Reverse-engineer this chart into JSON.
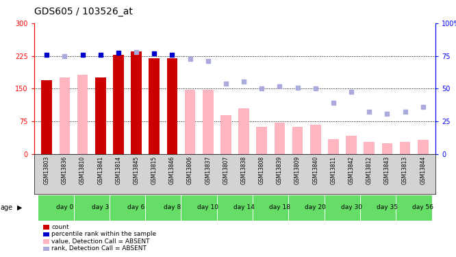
{
  "title": "GDS605 / 103526_at",
  "samples": [
    "GSM13803",
    "GSM13836",
    "GSM13810",
    "GSM13841",
    "GSM13814",
    "GSM13845",
    "GSM13815",
    "GSM13846",
    "GSM13806",
    "GSM13837",
    "GSM13807",
    "GSM13838",
    "GSM13808",
    "GSM13839",
    "GSM13809",
    "GSM13840",
    "GSM13811",
    "GSM13842",
    "GSM13812",
    "GSM13843",
    "GSM13813",
    "GSM13844"
  ],
  "age_groups": [
    {
      "label": "day 0",
      "start": 0,
      "end": 2
    },
    {
      "label": "day 3",
      "start": 2,
      "end": 4
    },
    {
      "label": "day 6",
      "start": 4,
      "end": 6
    },
    {
      "label": "day 8",
      "start": 6,
      "end": 8
    },
    {
      "label": "day 10",
      "start": 8,
      "end": 10
    },
    {
      "label": "day 14",
      "start": 10,
      "end": 12
    },
    {
      "label": "day 18",
      "start": 12,
      "end": 14
    },
    {
      "label": "day 20",
      "start": 14,
      "end": 16
    },
    {
      "label": "day 30",
      "start": 16,
      "end": 18
    },
    {
      "label": "day 35",
      "start": 18,
      "end": 20
    },
    {
      "label": "day 56",
      "start": 20,
      "end": 22
    }
  ],
  "count_values": [
    170,
    null,
    null,
    175,
    228,
    235,
    220,
    220,
    null,
    null,
    null,
    null,
    null,
    null,
    null,
    null,
    null,
    null,
    null,
    null,
    null,
    null
  ],
  "value_absent": [
    null,
    175,
    182,
    null,
    null,
    null,
    null,
    null,
    148,
    148,
    90,
    105,
    63,
    72,
    63,
    68,
    35,
    42,
    28,
    25,
    28,
    33
  ],
  "rank_present": [
    228,
    null,
    228,
    228,
    232,
    null,
    230,
    228,
    null,
    null,
    null,
    null,
    null,
    null,
    null,
    null,
    null,
    null,
    null,
    null,
    null,
    null
  ],
  "rank_absent": [
    null,
    225,
    null,
    null,
    null,
    234,
    null,
    null,
    218,
    213,
    162,
    167,
    151,
    155,
    152,
    151,
    117,
    143,
    98,
    93,
    98,
    108
  ],
  "ylim_left": [
    0,
    300
  ],
  "ylim_right": [
    0,
    100
  ],
  "yticks_left": [
    0,
    75,
    150,
    225,
    300
  ],
  "yticks_right": [
    0,
    25,
    50,
    75,
    100
  ],
  "ytick_labels_right": [
    "0",
    "25",
    "50",
    "75",
    "100%"
  ],
  "color_count": "#CC0000",
  "color_rank_present": "#0000CC",
  "color_value_absent": "#FFB6C1",
  "color_rank_absent": "#AAAADD",
  "legend_items": [
    {
      "color": "#CC0000",
      "label": "count"
    },
    {
      "color": "#0000CC",
      "label": "percentile rank within the sample"
    },
    {
      "color": "#FFB6C1",
      "label": "value, Detection Call = ABSENT"
    },
    {
      "color": "#AAAADD",
      "label": "rank, Detection Call = ABSENT"
    }
  ]
}
